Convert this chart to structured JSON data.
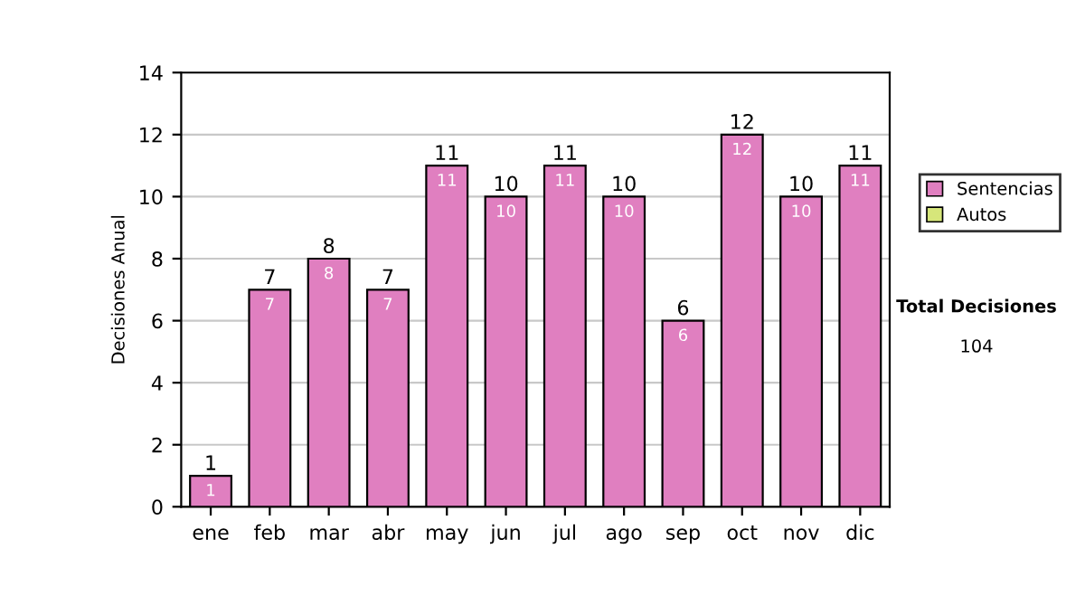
{
  "chart_data": {
    "type": "bar",
    "ylabel": "Decisiones Anual",
    "categories": [
      "ene",
      "feb",
      "mar",
      "abr",
      "may",
      "jun",
      "jul",
      "ago",
      "sep",
      "oct",
      "nov",
      "dic"
    ],
    "stacked": true,
    "series": [
      {
        "name": "Sentencias",
        "color": "#e07fc0",
        "values": [
          1,
          7,
          8,
          7,
          11,
          10,
          11,
          10,
          6,
          12,
          10,
          11
        ],
        "value_labels": [
          "1",
          "7",
          "8",
          "7",
          "11",
          "10",
          "11",
          "10",
          "6",
          "12",
          "10",
          "11"
        ]
      },
      {
        "name": "Autos",
        "color": "#d6e67a",
        "values": [
          0,
          0,
          0,
          0,
          0,
          0,
          0,
          0,
          0,
          0,
          0,
          0
        ]
      }
    ],
    "totals": [
      "1",
      "7",
      "8",
      "7",
      "11",
      "10",
      "11",
      "10",
      "6",
      "12",
      "10",
      "11"
    ],
    "ylim": [
      0,
      14
    ],
    "yticks": [
      0,
      2,
      4,
      6,
      8,
      10,
      12,
      14
    ],
    "grid": "y",
    "legend": "right",
    "annotations": [
      "Total Decisiones",
      "104"
    ]
  }
}
